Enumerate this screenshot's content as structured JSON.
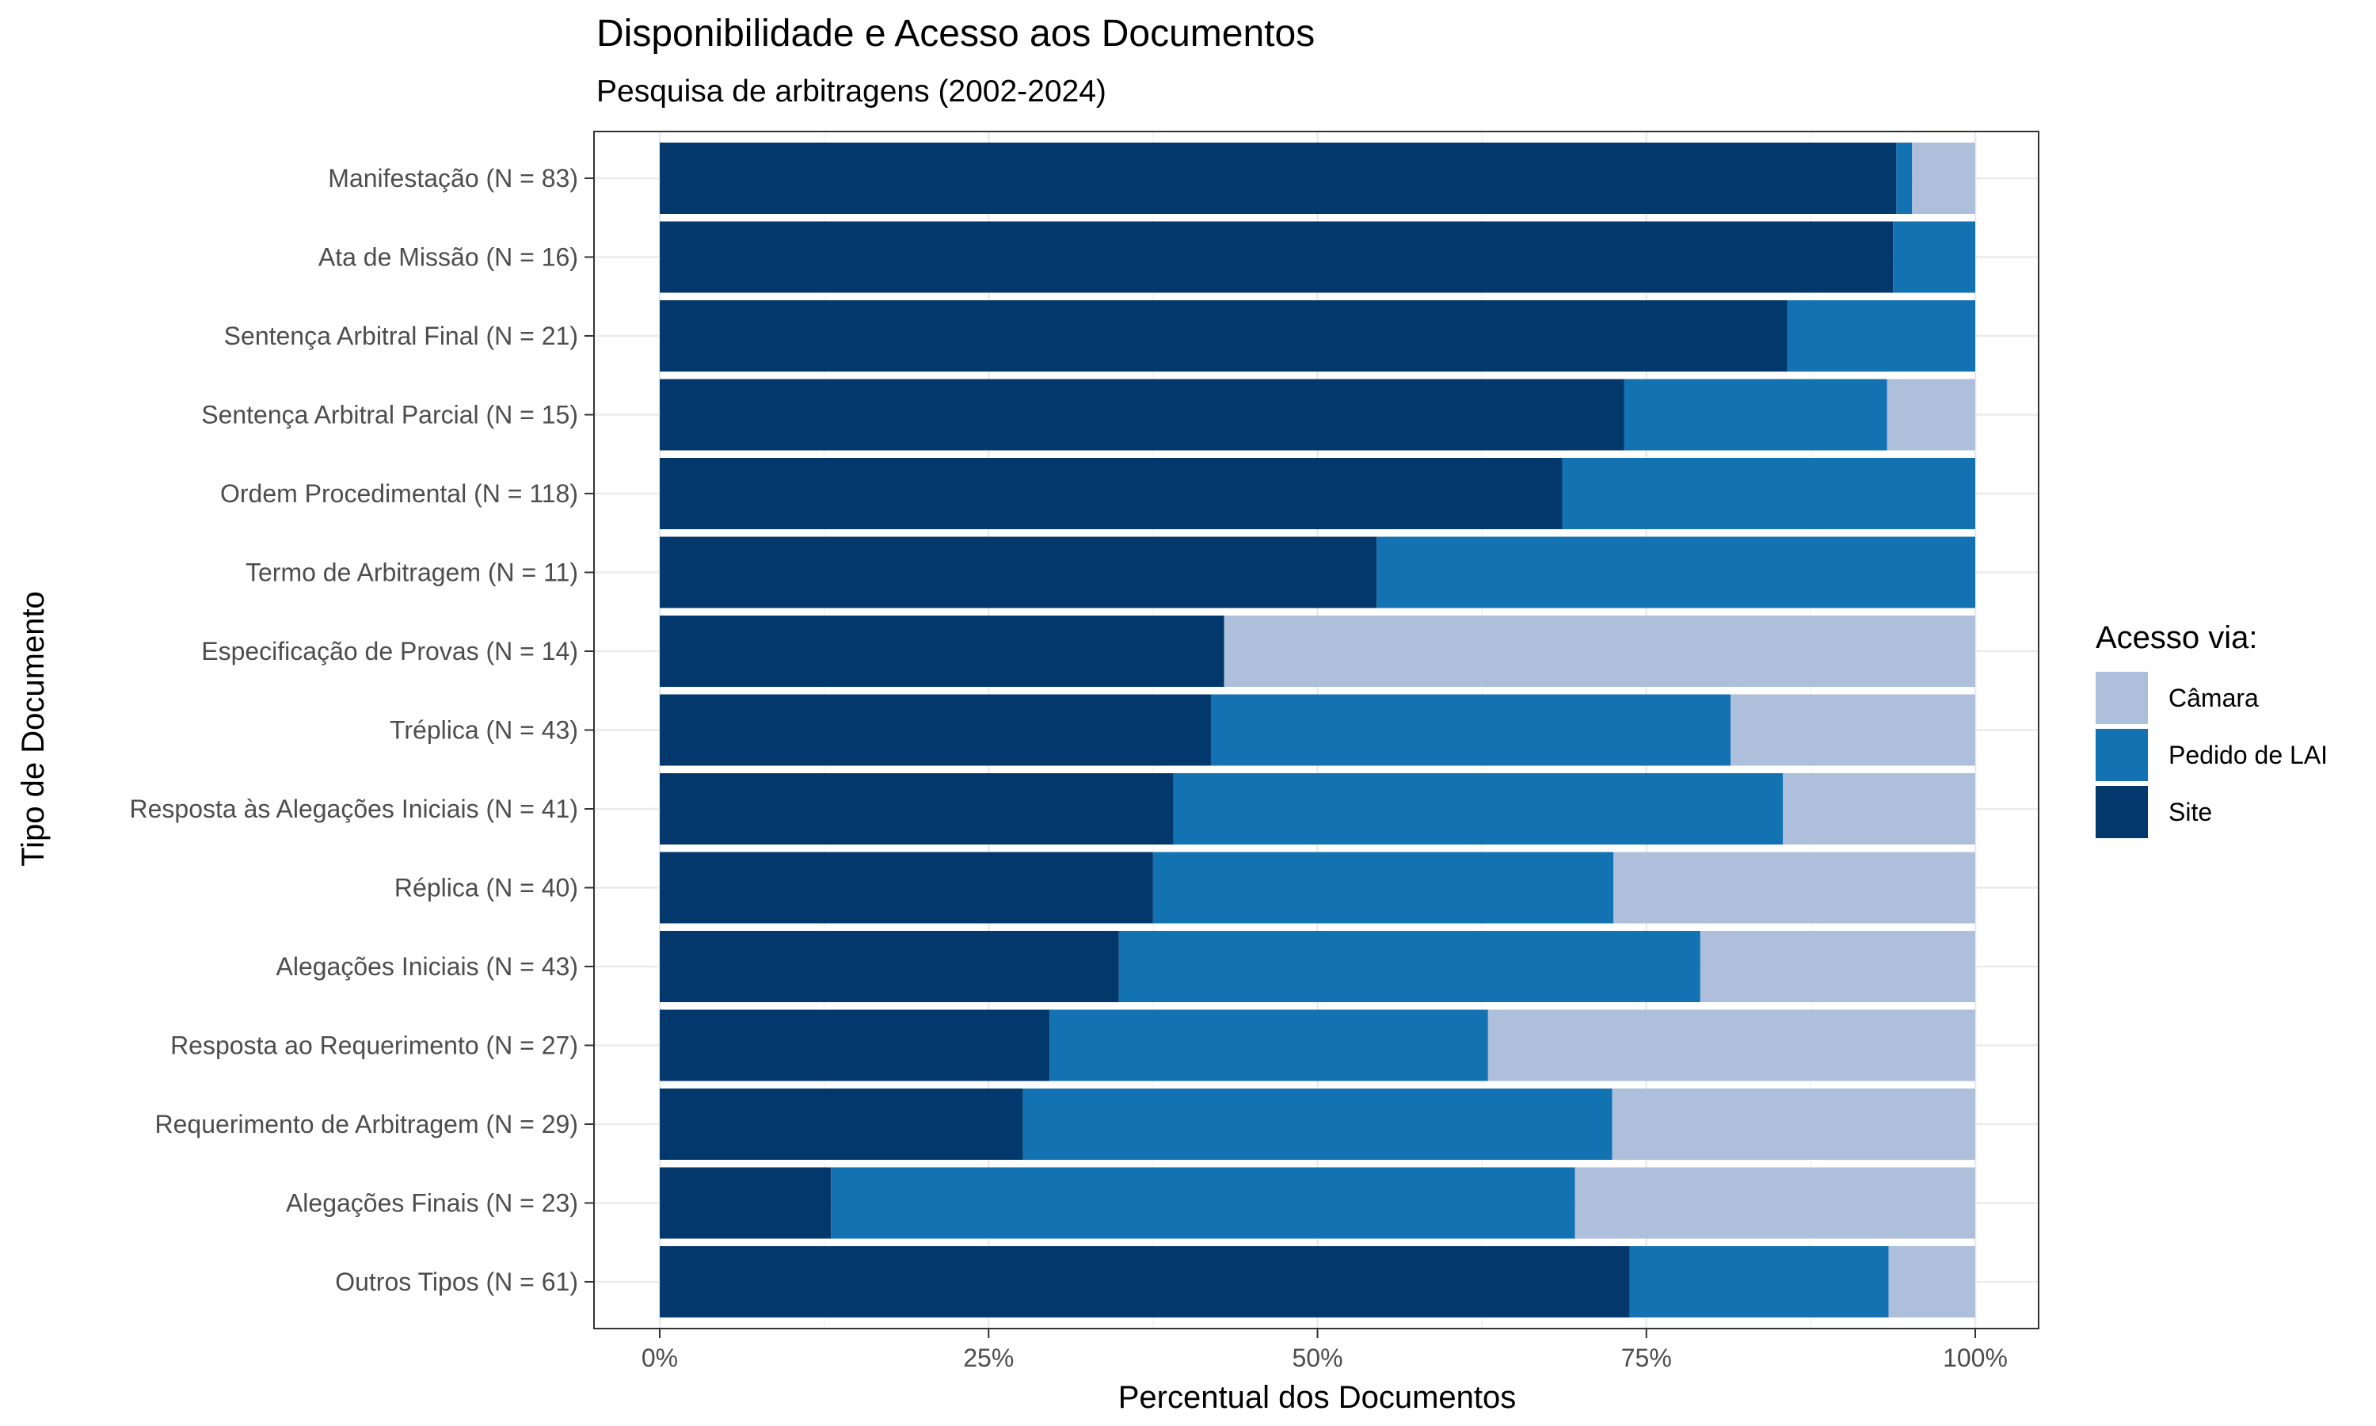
{
  "chart_data": {
    "type": "bar",
    "orientation": "horizontal",
    "stacked": "percent",
    "title": "Disponibilidade e Acesso aos Documentos",
    "subtitle": "Pesquisa de arbitragens (2002-2024)",
    "xlabel": "Percentual dos Documentos",
    "ylabel": "Tipo de Documento",
    "xlim": [
      0,
      100
    ],
    "x_ticks": [
      "0%",
      "25%",
      "50%",
      "75%",
      "100%"
    ],
    "grid": true,
    "legend": {
      "title": "Acesso via:",
      "position": "right"
    },
    "categories": [
      "Manifestação (N = 83)",
      "Ata de Missão (N = 16)",
      "Sentença Arbitral Final (N = 21)",
      "Sentença Arbitral Parcial (N = 15)",
      "Ordem Procedimental (N = 118)",
      "Termo de Arbitragem (N = 11)",
      "Especificação de Provas (N = 14)",
      "Tréplica (N = 43)",
      "Resposta às Alegações Iniciais (N = 41)",
      "Réplica (N = 40)",
      "Alegações Iniciais (N = 43)",
      "Resposta ao Requerimento (N = 27)",
      "Requerimento de Arbitragem (N = 29)",
      "Alegações Finais (N = 23)",
      "Outros Tipos (N = 61)"
    ],
    "series": [
      {
        "name": "Site",
        "color": "#03386c",
        "values": [
          94.0,
          93.75,
          85.7,
          73.3,
          68.6,
          54.5,
          42.9,
          41.9,
          39.0,
          37.5,
          34.9,
          29.6,
          27.6,
          13.0,
          73.8
        ]
      },
      {
        "name": "Pedido de LAI",
        "color": "#1372b1",
        "values": [
          1.2,
          6.25,
          14.3,
          20.0,
          31.4,
          45.5,
          0.0,
          39.5,
          46.3,
          35.0,
          44.2,
          33.3,
          44.8,
          56.5,
          19.7
        ]
      },
      {
        "name": "Câmara",
        "color": "#adbfdb",
        "values": [
          4.8,
          0.0,
          0.0,
          6.7,
          0.0,
          0.0,
          57.1,
          18.6,
          14.6,
          27.5,
          20.9,
          37.0,
          27.6,
          30.4,
          6.6
        ]
      }
    ],
    "legend_order": [
      "Câmara",
      "Pedido de LAI",
      "Site"
    ]
  }
}
